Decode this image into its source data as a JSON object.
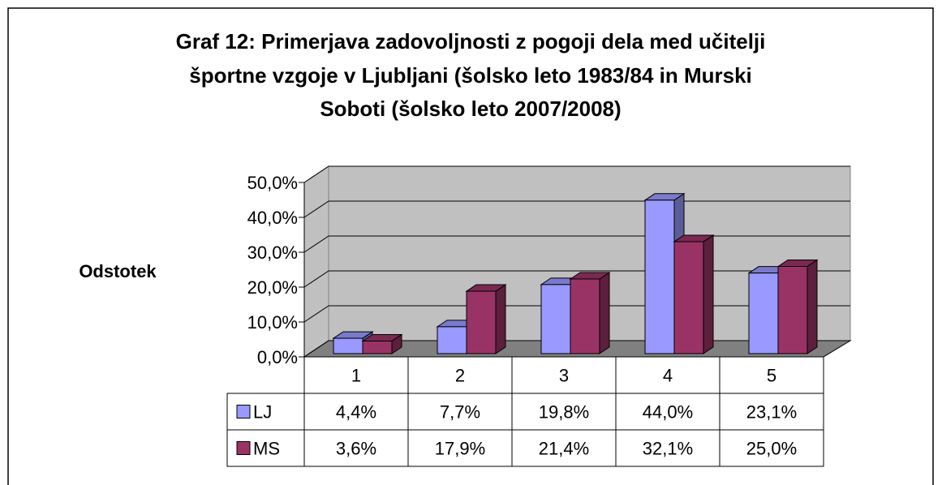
{
  "chart_data": {
    "type": "bar3d",
    "title": [
      "Graf 12: Primerjava zadovoljnosti z pogoji dela med učitelji",
      "športne vzgoje v Ljubljani (šolsko leto 1983/84 in Murski",
      "Soboti (šolsko leto 2007/2008)"
    ],
    "y_label": "Odstotek",
    "categories": [
      "1",
      "2",
      "3",
      "4",
      "5"
    ],
    "series": [
      {
        "name": "LJ",
        "color": "#9999ff",
        "values": [
          4.4,
          7.7,
          19.8,
          44.0,
          23.1
        ],
        "value_labels": [
          "4,4%",
          "7,7%",
          "19,8%",
          "44,0%",
          "23,1%"
        ]
      },
      {
        "name": "MS",
        "color": "#993366",
        "values": [
          3.6,
          17.9,
          21.4,
          32.1,
          25.0
        ],
        "value_labels": [
          "3,6%",
          "17,9%",
          "21,4%",
          "32,1%",
          "25,0%"
        ]
      }
    ],
    "ylim": [
      0,
      50
    ],
    "yticks": [
      {
        "value": 0,
        "label": "0,0%"
      },
      {
        "value": 10,
        "label": "10,0%"
      },
      {
        "value": 20,
        "label": "20,0%"
      },
      {
        "value": 30,
        "label": "30,0%"
      },
      {
        "value": 40,
        "label": "40,0%"
      },
      {
        "value": 50,
        "label": "50,0%"
      }
    ],
    "grid": true
  }
}
